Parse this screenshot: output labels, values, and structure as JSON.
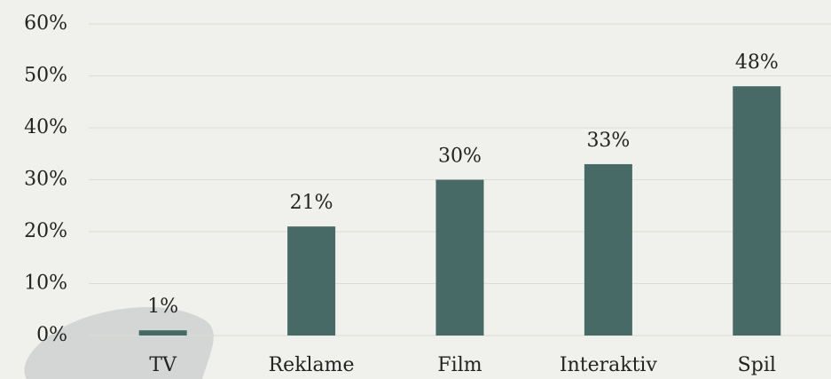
{
  "chart_data": {
    "type": "bar",
    "categories": [
      "TV",
      "Reklame",
      "Film",
      "Interaktiv",
      "Spil"
    ],
    "values": [
      1,
      21,
      30,
      33,
      48
    ],
    "value_labels": [
      "1%",
      "21%",
      "30%",
      "33%",
      "48%"
    ],
    "color": "#476a67",
    "ylim": [
      0,
      60
    ],
    "yticks": [
      {
        "value": 0,
        "label": "0%"
      },
      {
        "value": 10,
        "label": "10%"
      },
      {
        "value": 20,
        "label": "20%"
      },
      {
        "value": 30,
        "label": "30%"
      },
      {
        "value": 40,
        "label": "40%"
      },
      {
        "value": 50,
        "label": "50%"
      },
      {
        "value": 60,
        "label": "60%"
      }
    ],
    "grid": true
  }
}
